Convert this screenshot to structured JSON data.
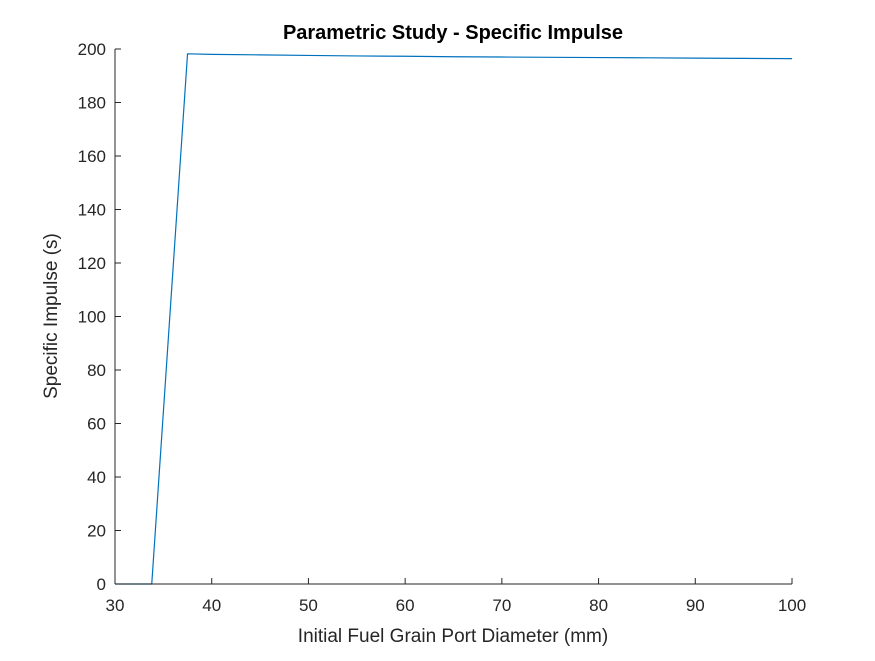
{
  "chart_data": {
    "type": "line",
    "title": "Parametric Study - Specific Impulse",
    "xlabel": "Initial Fuel Grain Port Diameter (mm)",
    "ylabel": "Specific Impulse (s)",
    "xlim": [
      30,
      100
    ],
    "ylim": [
      0,
      200
    ],
    "xticks": [
      "30",
      "40",
      "50",
      "60",
      "70",
      "80",
      "90",
      "100"
    ],
    "yticks": [
      "0",
      "20",
      "40",
      "60",
      "80",
      "100",
      "120",
      "140",
      "160",
      "180",
      "200"
    ],
    "grid": false,
    "legend": "none",
    "series": [
      {
        "color": "#0072BD",
        "x": [
          30,
          33.8,
          37.5,
          40,
          45,
          50,
          55,
          60,
          65,
          70,
          75,
          80,
          85,
          90,
          95,
          100
        ],
        "y": [
          0,
          0,
          198.2,
          198.0,
          197.8,
          197.6,
          197.4,
          197.3,
          197.1,
          197.0,
          196.9,
          196.8,
          196.7,
          196.6,
          196.5,
          196.4
        ]
      }
    ]
  }
}
